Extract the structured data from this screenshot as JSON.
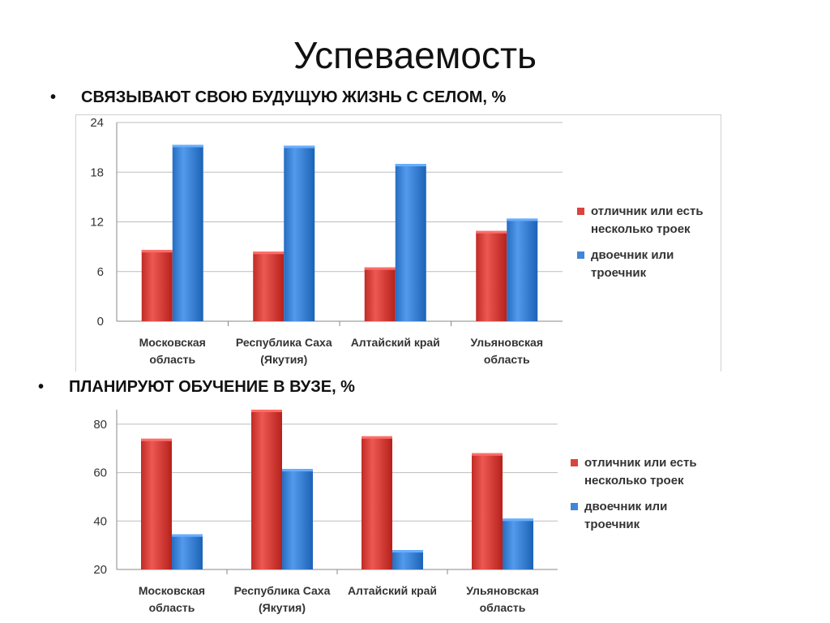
{
  "slide": {
    "title": "Успеваемость",
    "bullet1": "СВЯЗЫВАЮТ СВОЮ БУДУЩУЮ ЖИЗНЬ С СЕЛОМ, %",
    "bullet2": "ПЛАНИРУЮТ ОБУЧЕНИЕ В ВУЗЕ, %",
    "bullet_symbol": "•"
  },
  "colors": {
    "red": "#d9443e",
    "blue": "#3f86d9"
  },
  "chart_data": [
    {
      "type": "bar",
      "categories": [
        [
          "Московская",
          "область"
        ],
        [
          "Республика Саха",
          "(Якутия)"
        ],
        [
          "Алтайский край"
        ],
        [
          "Ульяновская",
          "область"
        ]
      ],
      "series": [
        {
          "name": "отличник или есть несколько троек",
          "legend_lines": [
            "отличник или есть",
            "несколько троек"
          ],
          "values": [
            8.6,
            8.4,
            6.5,
            10.9
          ]
        },
        {
          "name": "двоечник или троечник",
          "legend_lines": [
            "двоечник или",
            "троечник"
          ],
          "values": [
            21.3,
            21.2,
            19.0,
            12.4
          ]
        }
      ],
      "yticks": [
        0,
        6,
        12,
        18,
        24
      ],
      "ylim": [
        0,
        24
      ],
      "grid": true,
      "legend": "right"
    },
    {
      "type": "bar",
      "categories": [
        [
          "Московская",
          "область"
        ],
        [
          "Республика Саха",
          "(Якутия)"
        ],
        [
          "Алтайский край"
        ],
        [
          "Ульяновская",
          "область"
        ]
      ],
      "series": [
        {
          "name": "отличник или есть несколько троек",
          "legend_lines": [
            "отличник или есть",
            "несколько троек"
          ],
          "values": [
            74,
            86,
            75,
            68
          ]
        },
        {
          "name": "двоечник или троечник",
          "legend_lines": [
            "двоечник или",
            "троечник"
          ],
          "values": [
            34.5,
            61.5,
            28,
            41
          ]
        }
      ],
      "yticks": [
        20,
        40,
        60,
        80
      ],
      "ylim": [
        20,
        86
      ],
      "grid": true,
      "legend": "right"
    }
  ]
}
